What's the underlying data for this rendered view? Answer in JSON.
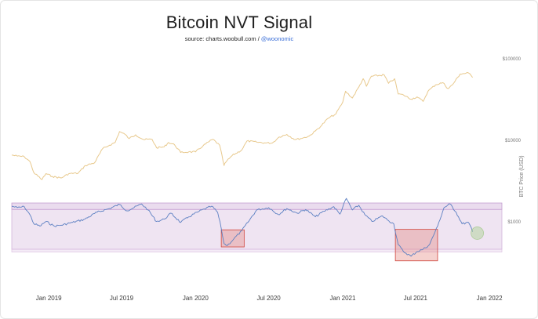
{
  "header": {
    "title": "Bitcoin NVT Signal",
    "source_prefix": "source: charts.woobull.com / ",
    "source_handle": "@woonomic"
  },
  "chart_data": {
    "type": "line",
    "title": "Bitcoin NVT Signal",
    "subtitle": "source: charts.woobull.com / @woonomic",
    "x_tick_labels": [
      "Jan 2019",
      "Jul 2019",
      "Jan 2020",
      "Jul 2020",
      "Jan 2021",
      "Jul 2021",
      "Jan 2022"
    ],
    "xlim": [
      "2018-10-01",
      "2022-02-01"
    ],
    "y_right": {
      "label": "BTC Price (USD)",
      "scale": "log",
      "ticks": [
        1000,
        10000,
        100000
      ],
      "tick_labels": [
        "$1000",
        "$10000",
        "$100000"
      ],
      "range": [
        250,
        180000
      ]
    },
    "series": [
      {
        "role": "btc-price",
        "color": "#e8c98d",
        "axis": "right",
        "points": [
          [
            "2018-10-01",
            6600
          ],
          [
            "2018-10-15",
            6400
          ],
          [
            "2018-11-01",
            6300
          ],
          [
            "2018-11-15",
            5500
          ],
          [
            "2018-11-25",
            4000
          ],
          [
            "2018-12-15",
            3300
          ],
          [
            "2018-12-25",
            3900
          ],
          [
            "2019-01-10",
            3600
          ],
          [
            "2019-02-01",
            3450
          ],
          [
            "2019-02-20",
            3900
          ],
          [
            "2019-03-15",
            3950
          ],
          [
            "2019-04-02",
            4900
          ],
          [
            "2019-04-25",
            5300
          ],
          [
            "2019-05-15",
            7900
          ],
          [
            "2019-06-01",
            8700
          ],
          [
            "2019-06-15",
            9400
          ],
          [
            "2019-06-26",
            12800
          ],
          [
            "2019-07-10",
            11800
          ],
          [
            "2019-07-20",
            10500
          ],
          [
            "2019-08-05",
            11700
          ],
          [
            "2019-08-25",
            10200
          ],
          [
            "2019-09-15",
            10300
          ],
          [
            "2019-09-26",
            8100
          ],
          [
            "2019-10-15",
            8300
          ],
          [
            "2019-10-26",
            9400
          ],
          [
            "2019-11-10",
            8800
          ],
          [
            "2019-11-25",
            7100
          ],
          [
            "2019-12-15",
            7200
          ],
          [
            "2020-01-01",
            7200
          ],
          [
            "2020-01-20",
            8600
          ],
          [
            "2020-02-13",
            10300
          ],
          [
            "2020-03-01",
            8700
          ],
          [
            "2020-03-12",
            4900
          ],
          [
            "2020-03-15",
            5300
          ],
          [
            "2020-04-01",
            6500
          ],
          [
            "2020-04-25",
            7600
          ],
          [
            "2020-05-08",
            9800
          ],
          [
            "2020-06-01",
            9500
          ],
          [
            "2020-06-20",
            9300
          ],
          [
            "2020-07-10",
            9250
          ],
          [
            "2020-07-27",
            11000
          ],
          [
            "2020-08-15",
            11800
          ],
          [
            "2020-09-05",
            10200
          ],
          [
            "2020-09-25",
            10700
          ],
          [
            "2020-10-10",
            11300
          ],
          [
            "2020-10-25",
            13000
          ],
          [
            "2020-11-10",
            15300
          ],
          [
            "2020-11-25",
            18500
          ],
          [
            "2020-12-15",
            21000
          ],
          [
            "2021-01-01",
            29300
          ],
          [
            "2021-01-08",
            40000
          ],
          [
            "2021-01-25",
            33000
          ],
          [
            "2021-02-10",
            45000
          ],
          [
            "2021-02-21",
            57000
          ],
          [
            "2021-03-01",
            46000
          ],
          [
            "2021-03-13",
            61000
          ],
          [
            "2021-04-14",
            63500
          ],
          [
            "2021-04-25",
            50000
          ],
          [
            "2021-05-10",
            57000
          ],
          [
            "2021-05-19",
            37000
          ],
          [
            "2021-06-01",
            36000
          ],
          [
            "2021-06-20",
            32000
          ],
          [
            "2021-07-05",
            34000
          ],
          [
            "2021-07-20",
            30000
          ],
          [
            "2021-08-01",
            40000
          ],
          [
            "2021-08-20",
            48000
          ],
          [
            "2021-09-07",
            51000
          ],
          [
            "2021-09-20",
            43000
          ],
          [
            "2021-10-01",
            48000
          ],
          [
            "2021-10-20",
            65000
          ],
          [
            "2021-11-10",
            67000
          ],
          [
            "2021-11-20",
            59000
          ]
        ]
      },
      {
        "role": "nvt-signal",
        "color": "#5b7fc2",
        "axis": "left-unlabeled",
        "relative_scale": "0 = bottom of lower band, 1 = top of upper band",
        "points": [
          [
            "2018-10-01",
            0.93
          ],
          [
            "2018-10-15",
            0.9
          ],
          [
            "2018-11-01",
            0.92
          ],
          [
            "2018-11-15",
            0.75
          ],
          [
            "2018-11-25",
            0.55
          ],
          [
            "2018-12-10",
            0.5
          ],
          [
            "2018-12-25",
            0.6
          ],
          [
            "2019-01-15",
            0.5
          ],
          [
            "2019-02-01",
            0.52
          ],
          [
            "2019-03-01",
            0.58
          ],
          [
            "2019-04-01",
            0.65
          ],
          [
            "2019-05-01",
            0.8
          ],
          [
            "2019-06-01",
            0.88
          ],
          [
            "2019-06-26",
            0.97
          ],
          [
            "2019-07-15",
            0.83
          ],
          [
            "2019-08-01",
            0.9
          ],
          [
            "2019-08-20",
            0.98
          ],
          [
            "2019-09-05",
            0.85
          ],
          [
            "2019-09-26",
            0.6
          ],
          [
            "2019-10-15",
            0.65
          ],
          [
            "2019-11-01",
            0.78
          ],
          [
            "2019-11-25",
            0.58
          ],
          [
            "2019-12-15",
            0.7
          ],
          [
            "2020-01-10",
            0.82
          ],
          [
            "2020-02-10",
            0.93
          ],
          [
            "2020-02-25",
            0.8
          ],
          [
            "2020-03-05",
            0.45
          ],
          [
            "2020-03-12",
            0.12
          ],
          [
            "2020-03-20",
            0.08
          ],
          [
            "2020-04-05",
            0.22
          ],
          [
            "2020-04-25",
            0.4
          ],
          [
            "2020-05-10",
            0.58
          ],
          [
            "2020-06-01",
            0.85
          ],
          [
            "2020-07-01",
            0.9
          ],
          [
            "2020-07-25",
            0.75
          ],
          [
            "2020-08-15",
            0.88
          ],
          [
            "2020-09-10",
            0.78
          ],
          [
            "2020-10-01",
            0.86
          ],
          [
            "2020-10-25",
            0.7
          ],
          [
            "2020-11-15",
            0.82
          ],
          [
            "2020-12-10",
            0.92
          ],
          [
            "2020-12-25",
            0.76
          ],
          [
            "2021-01-10",
            1.1
          ],
          [
            "2021-01-25",
            0.85
          ],
          [
            "2021-02-10",
            0.95
          ],
          [
            "2021-02-25",
            0.75
          ],
          [
            "2021-03-15",
            0.6
          ],
          [
            "2021-04-10",
            0.72
          ],
          [
            "2021-04-25",
            0.62
          ],
          [
            "2021-05-08",
            0.55
          ],
          [
            "2021-05-19",
            0.1
          ],
          [
            "2021-06-01",
            -0.05
          ],
          [
            "2021-06-20",
            -0.15
          ],
          [
            "2021-07-05",
            -0.05
          ],
          [
            "2021-07-20",
            0.0
          ],
          [
            "2021-08-05",
            0.1
          ],
          [
            "2021-08-25",
            0.5
          ],
          [
            "2021-09-10",
            0.9
          ],
          [
            "2021-09-25",
            0.98
          ],
          [
            "2021-10-10",
            0.8
          ],
          [
            "2021-10-25",
            0.55
          ],
          [
            "2021-11-10",
            0.58
          ],
          [
            "2021-11-20",
            0.38
          ]
        ]
      }
    ],
    "bands": [
      {
        "role": "overbought-band",
        "from": 0.86,
        "to": 1.0,
        "color": "#b98ac7"
      },
      {
        "role": "neutral-band",
        "from": 0.0,
        "to": 0.86,
        "color": "#caa6d4"
      },
      {
        "role": "oversold-band",
        "from": -0.06,
        "to": 0.0,
        "color": "#d9bde0"
      }
    ],
    "highlights": [
      {
        "role": "highlight-box",
        "from": "2020-03-05",
        "to": "2020-05-01",
        "y_from": 0.05,
        "y_to": 0.42,
        "color": "#e27a73"
      },
      {
        "role": "highlight-box",
        "from": "2021-05-12",
        "to": "2021-08-25",
        "y_from": -0.25,
        "y_to": 0.43,
        "color": "#e27a73"
      }
    ],
    "marker": {
      "role": "current-circle",
      "date": "2021-11-22",
      "y": 0.45,
      "color": "#a8d08d"
    },
    "grid": false,
    "legend": "none"
  }
}
